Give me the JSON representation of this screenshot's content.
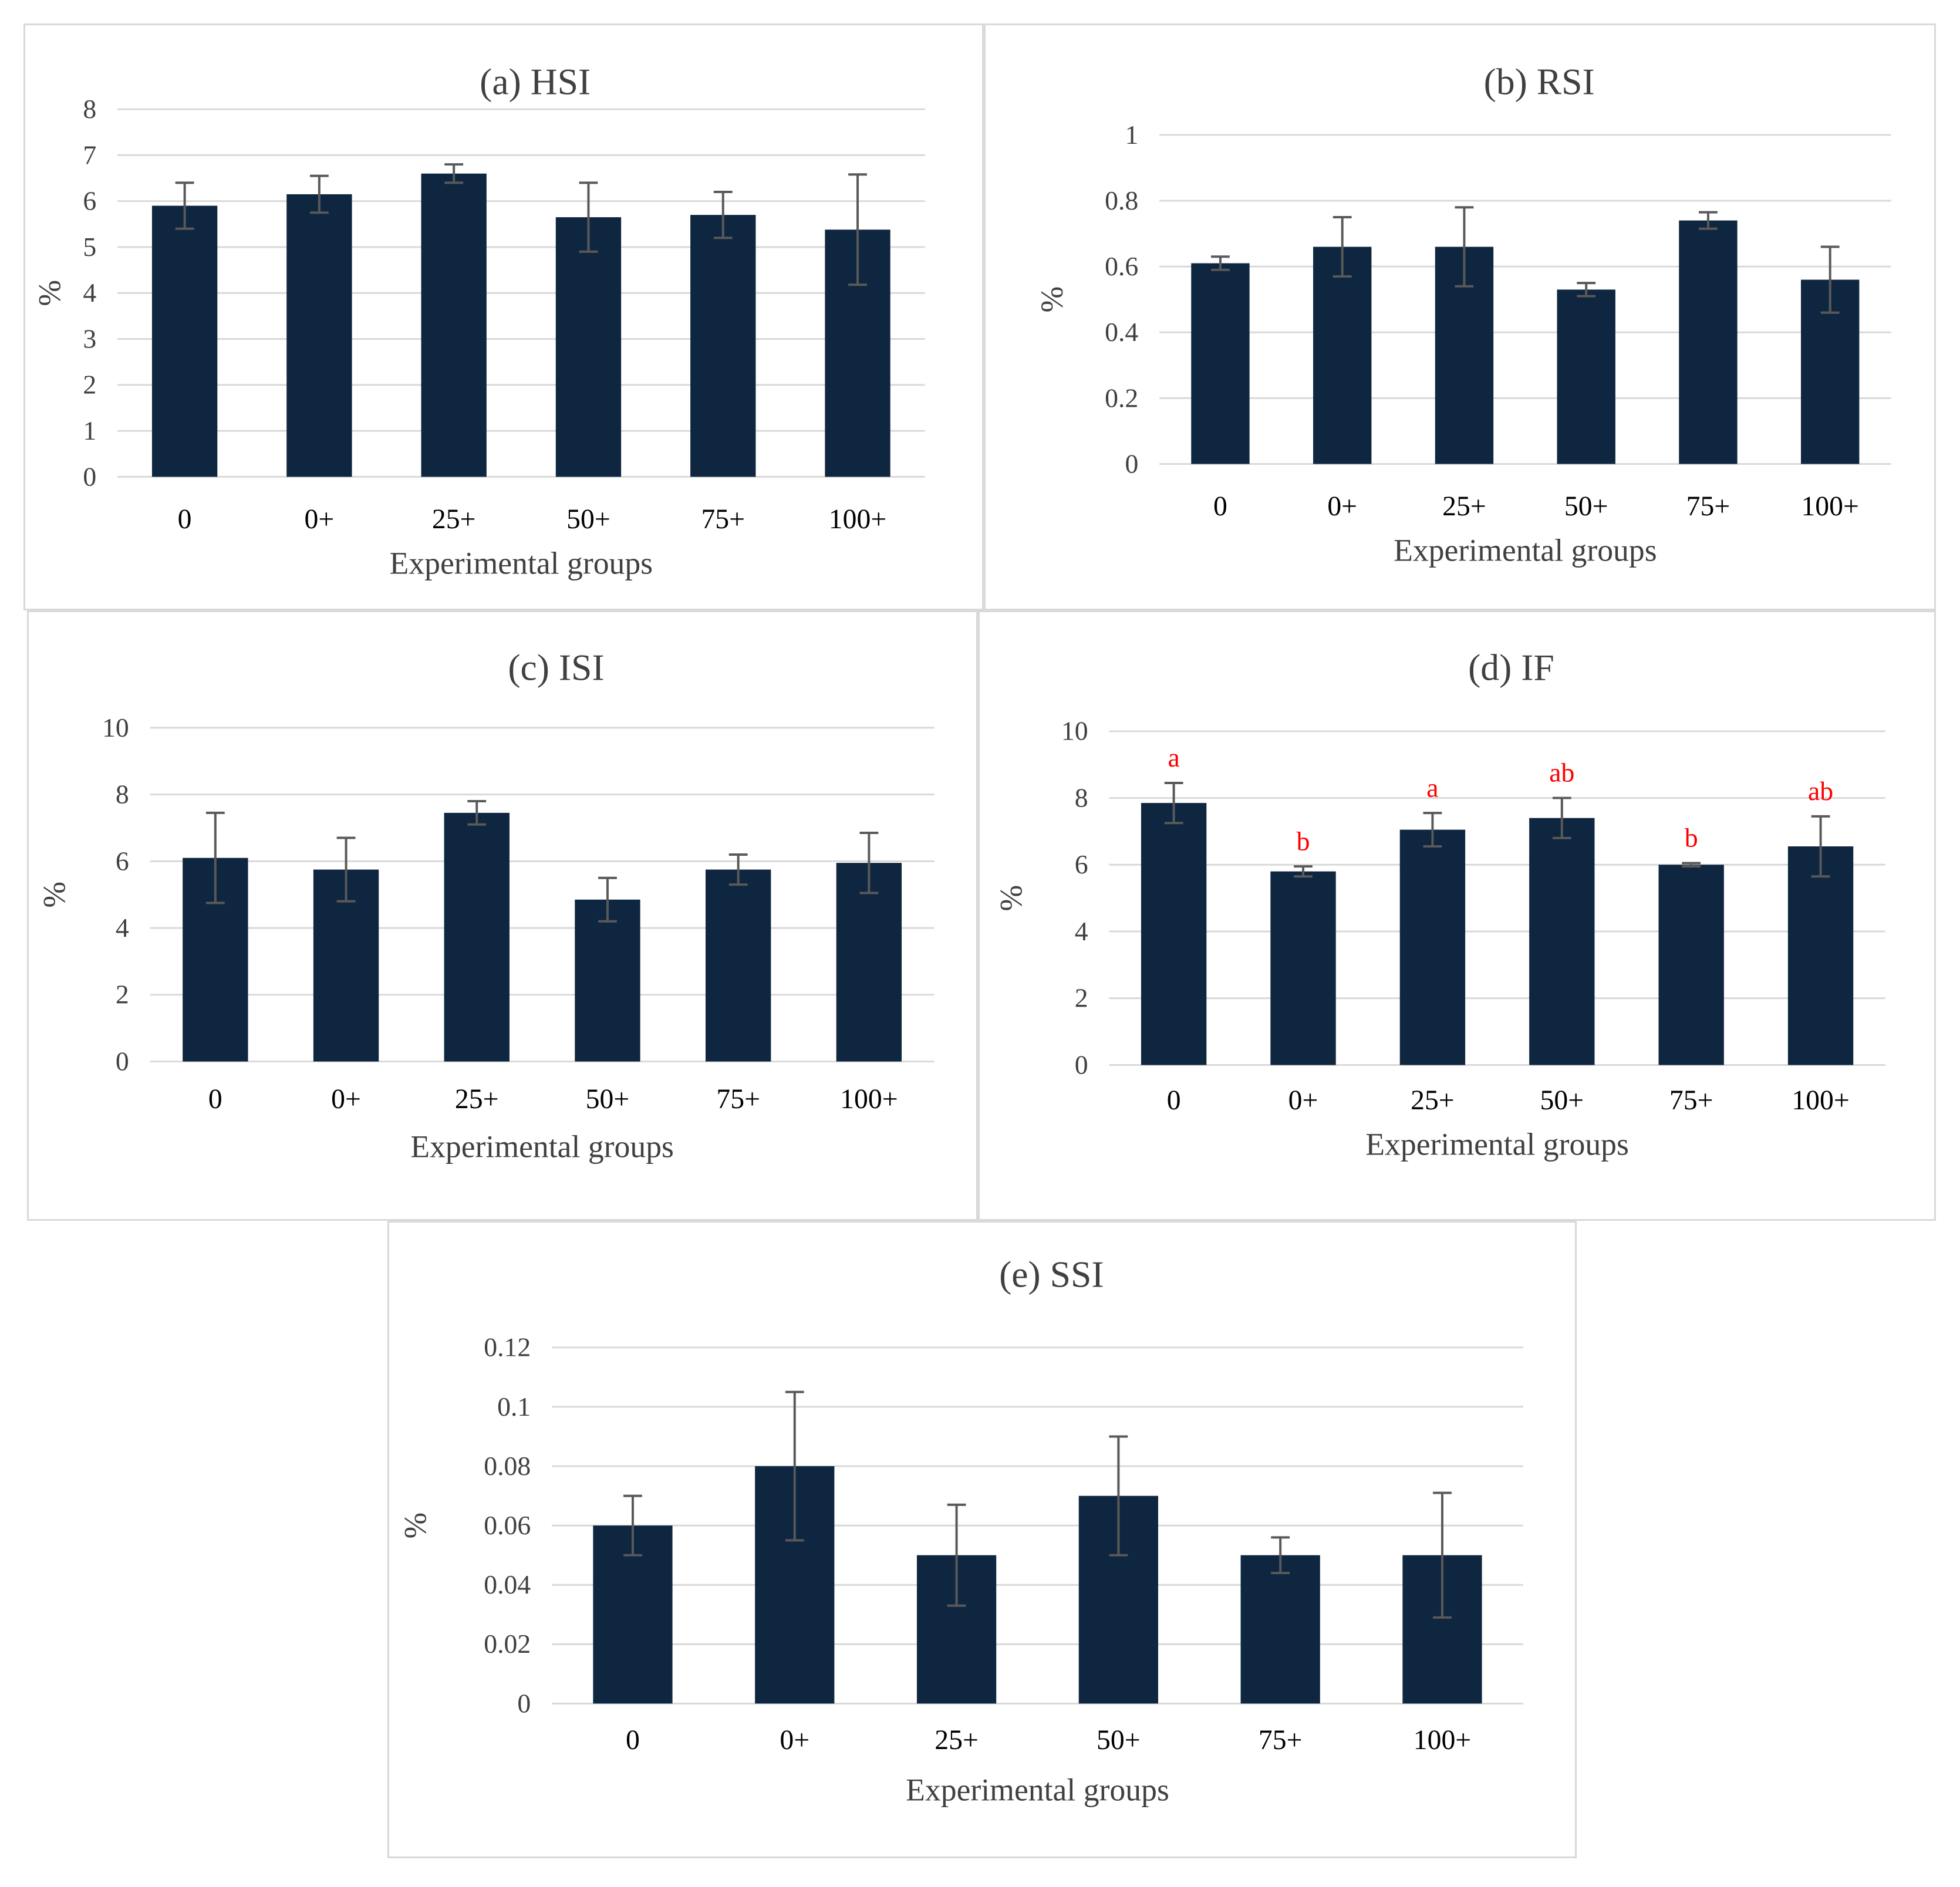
{
  "colors": {
    "bar": "#0f2640",
    "error_bar": "#595959",
    "gridline": "#d9d9d9",
    "significance": "#ff0000"
  },
  "chart_data": [
    {
      "id": "a",
      "type": "bar",
      "title": "(a) HSI",
      "xlabel": "Experimental groups",
      "ylabel": "%",
      "categories": [
        "0",
        "0+",
        "25+",
        "50+",
        "75+",
        "100+"
      ],
      "values": [
        5.9,
        6.15,
        6.6,
        5.65,
        5.7,
        5.38
      ],
      "errors": [
        0.5,
        0.4,
        0.2,
        0.75,
        0.5,
        1.2
      ],
      "ylim": [
        0,
        8
      ],
      "yticks": [
        "0",
        "1",
        "2",
        "3",
        "4",
        "5",
        "6",
        "7",
        "8"
      ],
      "grid": true
    },
    {
      "id": "b",
      "type": "bar",
      "title": "(b) RSI",
      "xlabel": "Experimental groups",
      "ylabel": "%",
      "categories": [
        "0",
        "0+",
        "25+",
        "50+",
        "75+",
        "100+"
      ],
      "values": [
        0.61,
        0.66,
        0.66,
        0.53,
        0.74,
        0.56
      ],
      "errors": [
        0.02,
        0.09,
        0.12,
        0.02,
        0.025,
        0.1
      ],
      "ylim": [
        0,
        1
      ],
      "yticks": [
        "0",
        "0.2",
        "0.4",
        "0.6",
        "0.8",
        "1"
      ],
      "grid": true
    },
    {
      "id": "c",
      "type": "bar",
      "title": "(c) ISI",
      "xlabel": "Experimental groups",
      "ylabel": "%",
      "categories": [
        "0",
        "0+",
        "25+",
        "50+",
        "75+",
        "100+"
      ],
      "values": [
        6.1,
        5.75,
        7.45,
        4.85,
        5.75,
        5.95
      ],
      "errors": [
        1.35,
        0.95,
        0.35,
        0.65,
        0.45,
        0.9
      ],
      "ylim": [
        0,
        10
      ],
      "yticks": [
        "0",
        "2",
        "4",
        "6",
        "8",
        "10"
      ],
      "grid": true
    },
    {
      "id": "d",
      "type": "bar",
      "title": "(d) IF",
      "xlabel": "Experimental groups",
      "ylabel": "%",
      "categories": [
        "0",
        "0+",
        "25+",
        "50+",
        "75+",
        "100+"
      ],
      "values": [
        7.85,
        5.8,
        7.05,
        7.4,
        6.0,
        6.55
      ],
      "errors": [
        0.6,
        0.15,
        0.5,
        0.6,
        0.05,
        0.9
      ],
      "labels": [
        "a",
        "b",
        "a",
        "ab",
        "b",
        "ab"
      ],
      "ylim": [
        0,
        10
      ],
      "yticks": [
        "0",
        "2",
        "4",
        "6",
        "8",
        "10"
      ],
      "grid": true
    },
    {
      "id": "e",
      "type": "bar",
      "title": "(e) SSI",
      "xlabel": "Experimental groups",
      "ylabel": "%",
      "categories": [
        "0",
        "0+",
        "25+",
        "50+",
        "75+",
        "100+"
      ],
      "values": [
        0.06,
        0.08,
        0.05,
        0.07,
        0.05,
        0.05
      ],
      "errors": [
        0.01,
        0.025,
        0.017,
        0.02,
        0.006,
        0.021
      ],
      "ylim": [
        0,
        0.12
      ],
      "yticks": [
        "0",
        "0.02",
        "0.04",
        "0.06",
        "0.08",
        "0.1",
        "0.12"
      ],
      "grid": true
    }
  ]
}
